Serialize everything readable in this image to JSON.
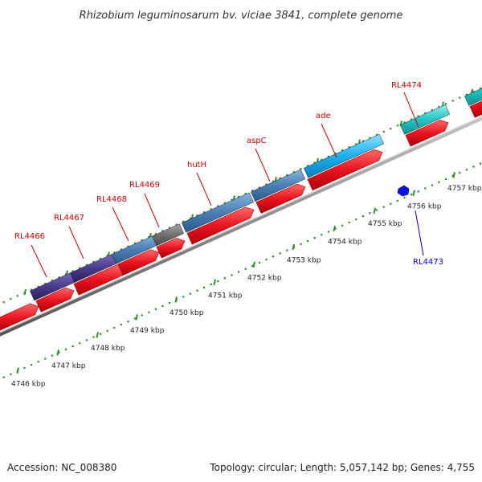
{
  "title": "Rhizobium leguminosarum bv. viciae 3841, complete genome",
  "footer": {
    "accession": "Accession: NC_008380",
    "summary": "Topology: circular; Length: 5,057,142 bp; Genes: 4,755"
  },
  "colors": {
    "backbone": "#8c8c8c",
    "cds_forward": "#e8141e",
    "tick": "#2e8b2e",
    "label_forward": "#cc0000",
    "label_reverse": "#0000cc",
    "gene_dark_purple": "#4b3a8c",
    "gene_steel_blue": "#4a7fb5",
    "gene_gray": "#707070",
    "gene_sky_blue": "#1ab0f0",
    "gene_cyan": "#22c4c4",
    "gene_blue": "#0a14e0"
  },
  "axis": {
    "unit": "kbp",
    "ticks": [
      {
        "label": "4746 kbp"
      },
      {
        "label": "4747 kbp"
      },
      {
        "label": "4748 kbp"
      },
      {
        "label": "4749 kbp"
      },
      {
        "label": "4750 kbp"
      },
      {
        "label": "4751 kbp"
      },
      {
        "label": "4752 kbp"
      },
      {
        "label": "4753 kbp"
      },
      {
        "label": "4754 kbp"
      },
      {
        "label": "4755 kbp"
      },
      {
        "label": "4756 kbp"
      },
      {
        "label": "4757 kbp"
      }
    ]
  },
  "genes": [
    {
      "label": "RL4466",
      "strand": "+",
      "color": "dark_purple"
    },
    {
      "label": "RL4467",
      "strand": "+",
      "color": "dark_purple"
    },
    {
      "label": "RL4468",
      "strand": "+",
      "color": "steel_blue"
    },
    {
      "label": "RL4469",
      "strand": "+",
      "color": "gray"
    },
    {
      "label": "hutH",
      "strand": "+",
      "color": "steel_blue"
    },
    {
      "label": "aspC",
      "strand": "+",
      "color": "steel_blue"
    },
    {
      "label": "ade",
      "strand": "+",
      "color": "sky_blue"
    },
    {
      "label": "RL4473",
      "strand": "-",
      "color": "blue"
    },
    {
      "label": "RL4474",
      "strand": "+",
      "color": "cyan"
    }
  ]
}
